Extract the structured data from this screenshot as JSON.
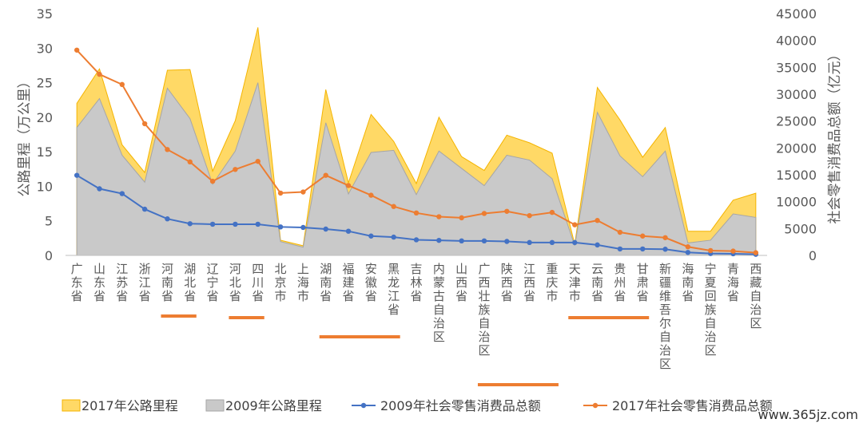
{
  "chart_data": {
    "type": "area",
    "categories": [
      "广东省",
      "山东省",
      "江苏省",
      "浙江省",
      "河南省",
      "湖北省",
      "辽宁省",
      "河北省",
      "四川省",
      "北京市",
      "上海市",
      "湖南省",
      "福建省",
      "安徽省",
      "黑龙江省",
      "吉林省",
      "内蒙古自治区",
      "山西省",
      "广西壮族自治区",
      "陕西省",
      "江西省",
      "重庆市",
      "天津市",
      "云南省",
      "贵州省",
      "甘肃省",
      "新疆维吾尔自治区",
      "海南省",
      "宁夏回族自治区",
      "青海省",
      "西藏自治区"
    ],
    "ylabel": "公路里程（万公里）",
    "y2label": "社会零售消费品总额（亿元）",
    "ylim": [
      0,
      35
    ],
    "y2lim": [
      0,
      45000
    ],
    "yticks": [
      0,
      5,
      10,
      15,
      20,
      25,
      30,
      35
    ],
    "y2ticks": [
      0,
      5000,
      10000,
      15000,
      20000,
      25000,
      30000,
      35000,
      40000,
      45000
    ],
    "grid": false,
    "legend_position": "bottom",
    "series": [
      {
        "name": "2017年公路里程",
        "axis": "left",
        "kind": "area",
        "color": "#FFD966",
        "line_color": "#F4B400",
        "values": [
          22,
          27,
          16,
          12,
          26.8,
          26.9,
          12.2,
          19.5,
          33,
          2.2,
          1.4,
          24,
          10.5,
          20.4,
          16.5,
          10.4,
          20,
          14.3,
          12.3,
          17.4,
          16.3,
          14.8,
          1.6,
          24.3,
          19.6,
          14.2,
          18.5,
          3.5,
          3.5,
          8,
          9
        ]
      },
      {
        "name": "2009年公路里程",
        "axis": "left",
        "kind": "area",
        "color": "#C9C9C9",
        "line_color": "#A6A6A6",
        "values": [
          18.5,
          22.7,
          14.5,
          10.6,
          24.2,
          19.8,
          10.3,
          15.1,
          25,
          2.0,
          1.2,
          19.2,
          8.9,
          14.9,
          15.2,
          8.8,
          15.1,
          12.6,
          10.1,
          14.5,
          13.8,
          11.1,
          1.4,
          20.7,
          14.4,
          11.4,
          15.1,
          1.8,
          2.2,
          6,
          5.5
        ]
      },
      {
        "name": "2009年社会零售消费品总额",
        "axis": "right",
        "kind": "line",
        "color": "#4472C4",
        "values": [
          14900,
          12400,
          11500,
          8600,
          6800,
          5900,
          5800,
          5800,
          5800,
          5300,
          5200,
          4900,
          4500,
          3600,
          3400,
          2900,
          2800,
          2700,
          2700,
          2600,
          2400,
          2400,
          2400,
          1950,
          1200,
          1200,
          1150,
          550,
          350,
          300,
          200
        ]
      },
      {
        "name": "2017年社会零售消费品总额",
        "axis": "right",
        "kind": "line",
        "color": "#ED7D31",
        "values": [
          38200,
          33700,
          31800,
          24500,
          19700,
          17400,
          13800,
          16000,
          17500,
          11600,
          11800,
          14900,
          13000,
          11200,
          9100,
          7900,
          7200,
          7000,
          7800,
          8200,
          7400,
          8000,
          5700,
          6500,
          4300,
          3600,
          3300,
          1600,
          900,
          800,
          500
        ]
      }
    ]
  },
  "watermark": "www.365jz.com"
}
